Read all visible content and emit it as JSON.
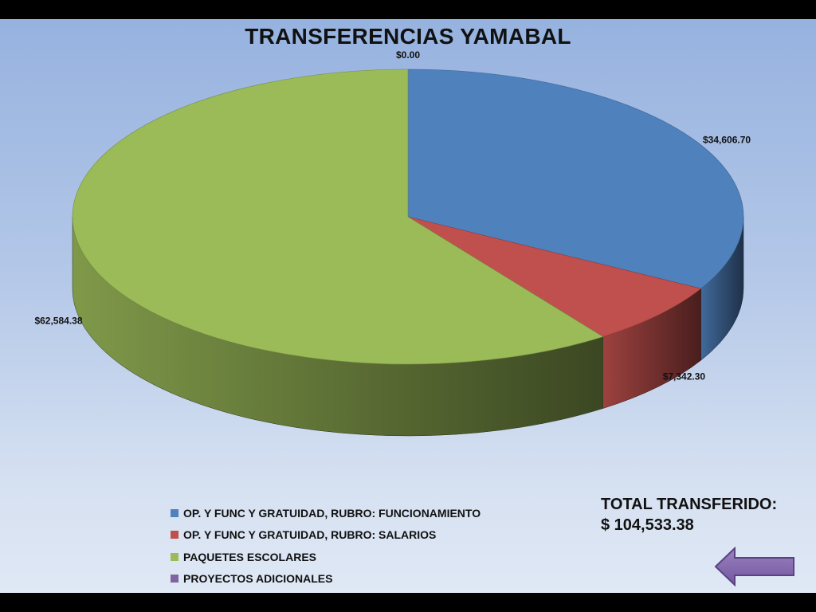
{
  "slide": {
    "title": "TRANSFERENCIAS YAMABAL",
    "total_label": "TOTAL TRANSFERIDO:",
    "total_value": "$ 104,533.38"
  },
  "chart_data": {
    "type": "pie",
    "title": "TRANSFERENCIAS YAMABAL",
    "style": "3d",
    "slices": [
      {
        "name": "OP. Y FUNC Y GRATUIDAD,  RUBRO: FUNCIONAMIENTO",
        "value": 34606.7,
        "label": "$34,606.70",
        "color": "#4f81bd"
      },
      {
        "name": "OP. Y FUNC Y GRATUIDAD,  RUBRO: SALARIOS",
        "value": 7342.3,
        "label": "$7,342.30",
        "color": "#c0504d"
      },
      {
        "name": "PAQUETES ESCOLARES",
        "value": 62584.38,
        "label": "$62,584.38",
        "color": "#9bbb59"
      },
      {
        "name": "PROYECTOS  ADICIONALES",
        "value": 0.0,
        "label": "$0.00",
        "color": "#8064a2"
      }
    ],
    "legend_position": "bottom-left"
  },
  "nav": {
    "back_icon": "left-arrow-icon",
    "back_color": "#8064a2"
  }
}
